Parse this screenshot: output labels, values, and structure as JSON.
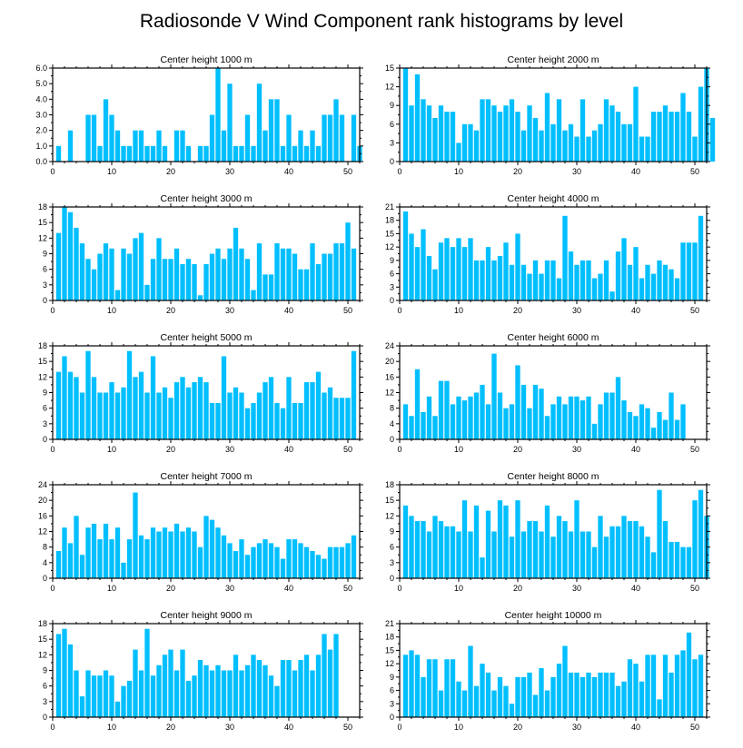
{
  "title": "Radiosonde V Wind Component rank histograms by level",
  "chart_data": [
    {
      "type": "bar",
      "title": "Center height 1000 m",
      "x_start": 1,
      "ylim": [
        0,
        6
      ],
      "yticks": [
        0,
        1,
        2,
        3,
        4,
        5,
        6
      ],
      "ytick_labels": [
        "0.0",
        "1.0",
        "2.0",
        "3.0",
        "4.0",
        "5.0",
        "6.0"
      ],
      "xlim": [
        0,
        52
      ],
      "xticks": [
        0,
        10,
        20,
        30,
        40,
        50
      ],
      "xtick_labels": [
        "0",
        "10",
        "20",
        "30",
        "40",
        "50"
      ],
      "color": "#00bfff",
      "values": [
        1,
        0,
        2,
        0,
        0,
        3,
        3,
        1,
        4,
        3,
        2,
        1,
        1,
        2,
        2,
        1,
        1,
        2,
        1,
        0,
        2,
        2,
        1,
        0,
        1,
        1,
        3,
        6,
        2,
        5,
        1,
        1,
        3,
        1,
        5,
        2,
        4,
        4,
        1,
        3,
        1,
        2,
        1,
        2,
        1,
        3,
        3,
        4,
        3,
        0,
        3,
        1
      ]
    },
    {
      "type": "bar",
      "title": "Center height 2000 m",
      "x_start": 1,
      "ylim": [
        0,
        15
      ],
      "yticks": [
        0,
        3,
        6,
        9,
        12,
        15
      ],
      "ytick_labels": [
        "0",
        "3",
        "6",
        "9",
        "12",
        "15"
      ],
      "xlim": [
        0,
        52
      ],
      "xticks": [
        0,
        10,
        20,
        30,
        40,
        50
      ],
      "xtick_labels": [
        "0",
        "10",
        "20",
        "30",
        "40",
        "50"
      ],
      "color": "#00bfff",
      "values": [
        15,
        9,
        14,
        10,
        9,
        7,
        9,
        8,
        8,
        3,
        6,
        6,
        5,
        10,
        10,
        9,
        8,
        9,
        10,
        8,
        5,
        9,
        7,
        5,
        11,
        6,
        10,
        5,
        6,
        4,
        10,
        4,
        5,
        6,
        10,
        9,
        8,
        6,
        6,
        12,
        4,
        4,
        8,
        8,
        9,
        8,
        8,
        11,
        8,
        4,
        12,
        15,
        7
      ]
    },
    {
      "type": "bar",
      "title": "Center height 3000 m",
      "x_start": 1,
      "ylim": [
        0,
        18
      ],
      "yticks": [
        0,
        3,
        6,
        9,
        12,
        15,
        18
      ],
      "ytick_labels": [
        "0",
        "3",
        "6",
        "9",
        "12",
        "15",
        "18"
      ],
      "xlim": [
        0,
        52
      ],
      "xticks": [
        0,
        10,
        20,
        30,
        40,
        50
      ],
      "xtick_labels": [
        "0",
        "10",
        "20",
        "30",
        "40",
        "50"
      ],
      "color": "#00bfff",
      "values": [
        13,
        18,
        17,
        14,
        11,
        8,
        6,
        9,
        11,
        10,
        2,
        10,
        9,
        12,
        13,
        3,
        8,
        12,
        8,
        8,
        10,
        7,
        8,
        7,
        1,
        7,
        9,
        10,
        8,
        10,
        14,
        10,
        8,
        2,
        11,
        5,
        5,
        11,
        10,
        10,
        9,
        6,
        6,
        11,
        7,
        9,
        9,
        11,
        11,
        15,
        10
      ]
    },
    {
      "type": "bar",
      "title": "Center height 4000 m",
      "x_start": 1,
      "ylim": [
        0,
        21
      ],
      "yticks": [
        0,
        3,
        6,
        9,
        12,
        15,
        18,
        21
      ],
      "ytick_labels": [
        "0",
        "3",
        "6",
        "9",
        "12",
        "15",
        "18",
        "21"
      ],
      "xlim": [
        0,
        52
      ],
      "xticks": [
        0,
        10,
        20,
        30,
        40,
        50
      ],
      "xtick_labels": [
        "0",
        "10",
        "20",
        "30",
        "40",
        "50"
      ],
      "color": "#00bfff",
      "values": [
        20,
        15,
        12,
        16,
        10,
        7,
        13,
        14,
        12,
        14,
        12,
        14,
        9,
        9,
        12,
        9,
        10,
        13,
        8,
        15,
        8,
        6,
        9,
        6,
        9,
        9,
        5,
        19,
        11,
        8,
        9,
        9,
        5,
        6,
        9,
        2,
        11,
        14,
        8,
        12,
        5,
        8,
        6,
        9,
        8,
        7,
        5,
        13,
        13,
        13,
        19
      ]
    },
    {
      "type": "bar",
      "title": "Center height 5000 m",
      "x_start": 1,
      "ylim": [
        0,
        18
      ],
      "yticks": [
        0,
        3,
        6,
        9,
        12,
        15,
        18
      ],
      "ytick_labels": [
        "0",
        "3",
        "6",
        "9",
        "12",
        "15",
        "18"
      ],
      "xlim": [
        0,
        52
      ],
      "xticks": [
        0,
        10,
        20,
        30,
        40,
        50
      ],
      "xtick_labels": [
        "0",
        "10",
        "20",
        "30",
        "40",
        "50"
      ],
      "color": "#00bfff",
      "values": [
        13,
        16,
        13,
        12,
        9,
        17,
        12,
        9,
        9,
        11,
        9,
        10,
        17,
        12,
        13,
        9,
        16,
        9,
        10,
        8,
        11,
        12,
        10,
        11,
        12,
        11,
        7,
        7,
        16,
        9,
        10,
        9,
        6,
        7,
        9,
        11,
        12,
        7,
        6,
        12,
        7,
        7,
        11,
        11,
        13,
        9,
        10,
        8,
        8,
        8,
        17
      ]
    },
    {
      "type": "bar",
      "title": "Center height 6000 m",
      "x_start": 1,
      "ylim": [
        0,
        24
      ],
      "yticks": [
        0,
        4,
        8,
        12,
        16,
        20,
        24
      ],
      "ytick_labels": [
        "0",
        "4",
        "8",
        "12",
        "16",
        "20",
        "24"
      ],
      "xlim": [
        0,
        52
      ],
      "xticks": [
        0,
        10,
        20,
        30,
        40,
        50
      ],
      "xtick_labels": [
        "0",
        "10",
        "20",
        "30",
        "40",
        "50"
      ],
      "color": "#00bfff",
      "values": [
        9,
        6,
        18,
        7,
        11,
        6,
        15,
        15,
        9,
        11,
        10,
        11,
        12,
        14,
        9,
        22,
        12,
        8,
        9,
        19,
        14,
        8,
        14,
        13,
        6,
        9,
        11,
        9,
        11,
        11,
        10,
        11,
        4,
        9,
        12,
        12,
        16,
        10,
        7,
        6,
        9,
        8,
        3,
        7,
        5,
        12,
        5,
        9
      ]
    },
    {
      "type": "bar",
      "title": "Center height 7000 m",
      "x_start": 1,
      "ylim": [
        0,
        24
      ],
      "yticks": [
        0,
        4,
        8,
        12,
        16,
        20,
        24
      ],
      "ytick_labels": [
        "0",
        "4",
        "8",
        "12",
        "16",
        "20",
        "24"
      ],
      "xlim": [
        0,
        52
      ],
      "xticks": [
        0,
        10,
        20,
        30,
        40,
        50
      ],
      "xtick_labels": [
        "0",
        "10",
        "20",
        "30",
        "40",
        "50"
      ],
      "color": "#00bfff",
      "values": [
        7,
        13,
        9,
        16,
        6,
        13,
        14,
        10,
        14,
        10,
        13,
        4,
        10,
        22,
        11,
        10,
        13,
        12,
        13,
        12,
        14,
        12,
        13,
        12,
        8,
        16,
        15,
        13,
        11,
        9,
        7,
        10,
        6,
        8,
        9,
        10,
        9,
        8,
        5,
        10,
        10,
        9,
        8,
        7,
        6,
        5,
        8,
        8,
        8,
        9,
        11
      ]
    },
    {
      "type": "bar",
      "title": "Center height 8000 m",
      "x_start": 1,
      "ylim": [
        0,
        18
      ],
      "yticks": [
        0,
        3,
        6,
        9,
        12,
        15,
        18
      ],
      "ytick_labels": [
        "0",
        "3",
        "6",
        "9",
        "12",
        "15",
        "18"
      ],
      "xlim": [
        0,
        52
      ],
      "xticks": [
        0,
        10,
        20,
        30,
        40,
        50
      ],
      "xtick_labels": [
        "0",
        "10",
        "20",
        "30",
        "40",
        "50"
      ],
      "color": "#00bfff",
      "values": [
        14,
        12,
        11,
        11,
        9,
        12,
        11,
        10,
        10,
        9,
        15,
        9,
        14,
        4,
        13,
        9,
        15,
        14,
        8,
        15,
        9,
        11,
        11,
        9,
        14,
        8,
        12,
        11,
        9,
        15,
        9,
        9,
        6,
        12,
        8,
        10,
        10,
        12,
        11,
        11,
        10,
        8,
        5,
        17,
        11,
        7,
        7,
        6,
        6,
        15,
        17,
        12
      ]
    },
    {
      "type": "bar",
      "title": "Center height 9000 m",
      "x_start": 1,
      "ylim": [
        0,
        18
      ],
      "yticks": [
        0,
        3,
        6,
        9,
        12,
        15,
        18
      ],
      "ytick_labels": [
        "0",
        "3",
        "6",
        "9",
        "12",
        "15",
        "18"
      ],
      "xlim": [
        0,
        52
      ],
      "xticks": [
        0,
        10,
        20,
        30,
        40,
        50
      ],
      "xtick_labels": [
        "0",
        "10",
        "20",
        "30",
        "40",
        "50"
      ],
      "color": "#00bfff",
      "values": [
        16,
        17,
        14,
        9,
        4,
        9,
        8,
        8,
        9,
        8,
        3,
        6,
        7,
        13,
        9,
        17,
        8,
        10,
        12,
        13,
        9,
        13,
        7,
        8,
        11,
        10,
        9,
        10,
        9,
        9,
        12,
        9,
        10,
        12,
        11,
        10,
        8,
        6,
        11,
        11,
        9,
        11,
        12,
        9,
        12,
        16,
        13,
        16
      ]
    },
    {
      "type": "bar",
      "title": "Center height 10000 m",
      "x_start": 1,
      "ylim": [
        0,
        21
      ],
      "yticks": [
        0,
        3,
        6,
        9,
        12,
        15,
        18,
        21
      ],
      "ytick_labels": [
        "0",
        "3",
        "6",
        "9",
        "12",
        "15",
        "18",
        "21"
      ],
      "xlim": [
        0,
        52
      ],
      "xticks": [
        0,
        10,
        20,
        30,
        40,
        50
      ],
      "xtick_labels": [
        "0",
        "10",
        "20",
        "30",
        "40",
        "50"
      ],
      "color": "#00bfff",
      "values": [
        14,
        15,
        14,
        9,
        13,
        13,
        6,
        13,
        13,
        8,
        6,
        16,
        7,
        12,
        10,
        6,
        9,
        7,
        3,
        9,
        9,
        10,
        5,
        11,
        6,
        9,
        12,
        16,
        10,
        10,
        9,
        10,
        9,
        10,
        10,
        10,
        7,
        8,
        13,
        12,
        8,
        14,
        14,
        4,
        14,
        10,
        14,
        15,
        19,
        13,
        14
      ]
    }
  ]
}
